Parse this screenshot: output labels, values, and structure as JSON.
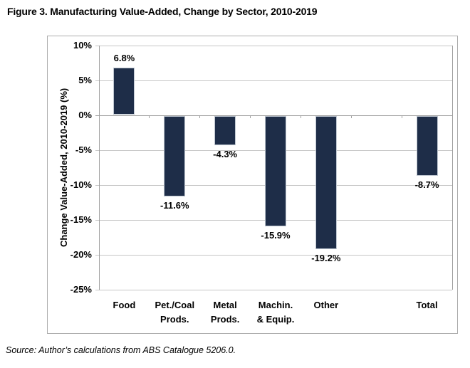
{
  "page": {
    "title": "Figure 3. Manufacturing Value-Added, Change by Sector, 2010-2019",
    "source_note": "Source: Author’s calculations from ABS Catalogue 5206.0."
  },
  "chart_data": {
    "type": "bar",
    "title": "Figure 3. Manufacturing Value-Added, Change by Sector, 2010-2019",
    "categories": [
      "Food",
      "Pet./Coal Prods.",
      "Metal Prods.",
      "Machin. & Equip.",
      "Other",
      "",
      "Total"
    ],
    "category_lines": [
      [
        "Food"
      ],
      [
        "Pet./Coal",
        "Prods."
      ],
      [
        "Metal",
        "Prods."
      ],
      [
        "Machin.",
        "& Equip."
      ],
      [
        "Other"
      ],
      [],
      [
        "Total"
      ]
    ],
    "values": [
      6.8,
      -11.6,
      -4.3,
      -15.9,
      -19.2,
      null,
      -8.7
    ],
    "data_labels": [
      "6.8%",
      "-11.6%",
      "-4.3%",
      "-15.9%",
      "-19.2%",
      null,
      "-8.7%"
    ],
    "xlabel": "",
    "ylabel": "Change Value-Added, 2010-2019 (%)",
    "ylim": [
      -25,
      10
    ],
    "ytick_step": 5,
    "ytick_labels": [
      "10%",
      "5%",
      "0%",
      "-5%",
      "-10%",
      "-15%",
      "-20%",
      "-25%"
    ],
    "grid": true,
    "legend": false,
    "colors": {
      "bar_fill": "#1E2D48",
      "bar_edge": "#BEC6D0",
      "gridline": "#C6C6C6",
      "axis": "#A0A0A0",
      "frame_border": "#ACACAC",
      "text": "#000000"
    }
  }
}
